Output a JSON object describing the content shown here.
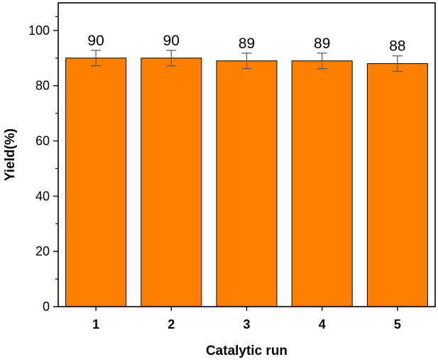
{
  "chart_data": {
    "type": "bar",
    "title": "",
    "xlabel": "Catalytic run",
    "ylabel": "Yield(%)",
    "categories": [
      "1",
      "2",
      "3",
      "4",
      "5"
    ],
    "values": [
      90,
      90,
      89,
      89,
      88
    ],
    "value_labels": [
      "90",
      "90",
      "89",
      "89",
      "88"
    ],
    "errors": [
      2.8,
      2.8,
      2.8,
      2.8,
      2.8
    ],
    "ylim": [
      0,
      110
    ],
    "yticks": [
      0,
      20,
      40,
      60,
      80,
      100
    ],
    "ytick_labels": [
      "0",
      "20",
      "40",
      "60",
      "80",
      "100"
    ],
    "grid": false,
    "legend": "none",
    "colors": {
      "bar_fill": "#ff8000",
      "bar_edge": "#000000",
      "error_bar": "#555555"
    }
  }
}
